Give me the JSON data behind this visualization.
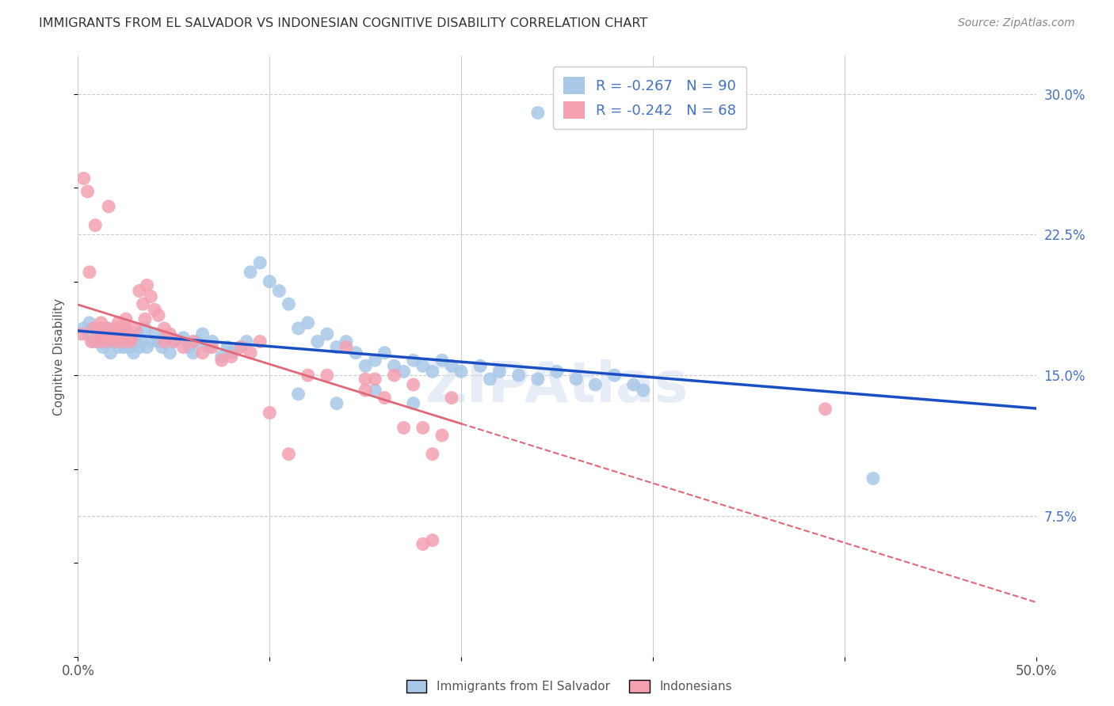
{
  "title": "IMMIGRANTS FROM EL SALVADOR VS INDONESIAN COGNITIVE DISABILITY CORRELATION CHART",
  "source": "Source: ZipAtlas.com",
  "ylabel": "Cognitive Disability",
  "xlim": [
    0.0,
    0.5
  ],
  "ylim": [
    0.0,
    0.32
  ],
  "x_ticks": [
    0.0,
    0.1,
    0.2,
    0.3,
    0.4,
    0.5
  ],
  "x_tick_labels": [
    "0.0%",
    "",
    "",
    "",
    "",
    "50.0%"
  ],
  "y_ticks_right": [
    0.075,
    0.15,
    0.225,
    0.3
  ],
  "y_tick_labels_right": [
    "7.5%",
    "15.0%",
    "22.5%",
    "30.0%"
  ],
  "legend_labels": [
    "Immigrants from El Salvador",
    "Indonesians"
  ],
  "legend_r_values": [
    "-0.267",
    "-0.242"
  ],
  "legend_n_values": [
    "90",
    "68"
  ],
  "scatter_blue_color": "#a8c8e8",
  "scatter_pink_color": "#f4a0b0",
  "line_blue_color": "#1a4fc4",
  "line_pink_color": "#e06878",
  "watermark": "ZIPAtlas",
  "blue_x": [
    0.003,
    0.005,
    0.006,
    0.008,
    0.009,
    0.01,
    0.011,
    0.012,
    0.013,
    0.014,
    0.015,
    0.016,
    0.017,
    0.018,
    0.019,
    0.02,
    0.021,
    0.022,
    0.023,
    0.024,
    0.025,
    0.026,
    0.027,
    0.028,
    0.029,
    0.03,
    0.031,
    0.032,
    0.033,
    0.035,
    0.036,
    0.038,
    0.04,
    0.042,
    0.044,
    0.046,
    0.048,
    0.05,
    0.055,
    0.058,
    0.06,
    0.062,
    0.065,
    0.068,
    0.07,
    0.075,
    0.078,
    0.08,
    0.085,
    0.088,
    0.09,
    0.095,
    0.1,
    0.105,
    0.11,
    0.115,
    0.12,
    0.125,
    0.13,
    0.135,
    0.14,
    0.145,
    0.15,
    0.155,
    0.16,
    0.165,
    0.17,
    0.175,
    0.18,
    0.185,
    0.19,
    0.195,
    0.2,
    0.21,
    0.215,
    0.22,
    0.23,
    0.24,
    0.25,
    0.26,
    0.27,
    0.28,
    0.29,
    0.295,
    0.175,
    0.155,
    0.135,
    0.115,
    0.415,
    0.24
  ],
  "blue_y": [
    0.175,
    0.172,
    0.178,
    0.168,
    0.175,
    0.172,
    0.168,
    0.17,
    0.165,
    0.172,
    0.168,
    0.175,
    0.162,
    0.17,
    0.168,
    0.172,
    0.165,
    0.168,
    0.17,
    0.165,
    0.172,
    0.168,
    0.165,
    0.17,
    0.162,
    0.168,
    0.172,
    0.165,
    0.168,
    0.175,
    0.165,
    0.168,
    0.172,
    0.168,
    0.165,
    0.17,
    0.162,
    0.168,
    0.17,
    0.165,
    0.162,
    0.168,
    0.172,
    0.165,
    0.168,
    0.16,
    0.165,
    0.162,
    0.165,
    0.168,
    0.205,
    0.21,
    0.2,
    0.195,
    0.188,
    0.175,
    0.178,
    0.168,
    0.172,
    0.165,
    0.168,
    0.162,
    0.155,
    0.158,
    0.162,
    0.155,
    0.152,
    0.158,
    0.155,
    0.152,
    0.158,
    0.155,
    0.152,
    0.155,
    0.148,
    0.152,
    0.15,
    0.148,
    0.152,
    0.148,
    0.145,
    0.15,
    0.145,
    0.142,
    0.135,
    0.142,
    0.135,
    0.14,
    0.095,
    0.29
  ],
  "pink_x": [
    0.002,
    0.003,
    0.005,
    0.006,
    0.007,
    0.008,
    0.009,
    0.01,
    0.011,
    0.012,
    0.013,
    0.014,
    0.015,
    0.016,
    0.017,
    0.018,
    0.019,
    0.02,
    0.021,
    0.022,
    0.023,
    0.024,
    0.025,
    0.026,
    0.027,
    0.028,
    0.03,
    0.032,
    0.034,
    0.036,
    0.038,
    0.04,
    0.042,
    0.045,
    0.048,
    0.05,
    0.055,
    0.06,
    0.065,
    0.07,
    0.075,
    0.08,
    0.085,
    0.09,
    0.095,
    0.1,
    0.11,
    0.12,
    0.13,
    0.14,
    0.15,
    0.155,
    0.16,
    0.165,
    0.17,
    0.175,
    0.18,
    0.185,
    0.19,
    0.195,
    0.02,
    0.025,
    0.035,
    0.045,
    0.15,
    0.185,
    0.39,
    0.18
  ],
  "pink_y": [
    0.172,
    0.255,
    0.248,
    0.205,
    0.168,
    0.175,
    0.23,
    0.168,
    0.175,
    0.178,
    0.172,
    0.168,
    0.175,
    0.24,
    0.17,
    0.172,
    0.168,
    0.175,
    0.178,
    0.172,
    0.168,
    0.175,
    0.18,
    0.172,
    0.168,
    0.17,
    0.175,
    0.195,
    0.188,
    0.198,
    0.192,
    0.185,
    0.182,
    0.175,
    0.172,
    0.168,
    0.165,
    0.168,
    0.162,
    0.165,
    0.158,
    0.16,
    0.165,
    0.162,
    0.168,
    0.13,
    0.108,
    0.15,
    0.15,
    0.165,
    0.142,
    0.148,
    0.138,
    0.15,
    0.122,
    0.145,
    0.122,
    0.108,
    0.118,
    0.138,
    0.17,
    0.175,
    0.18,
    0.168,
    0.148,
    0.062,
    0.132,
    0.06
  ]
}
